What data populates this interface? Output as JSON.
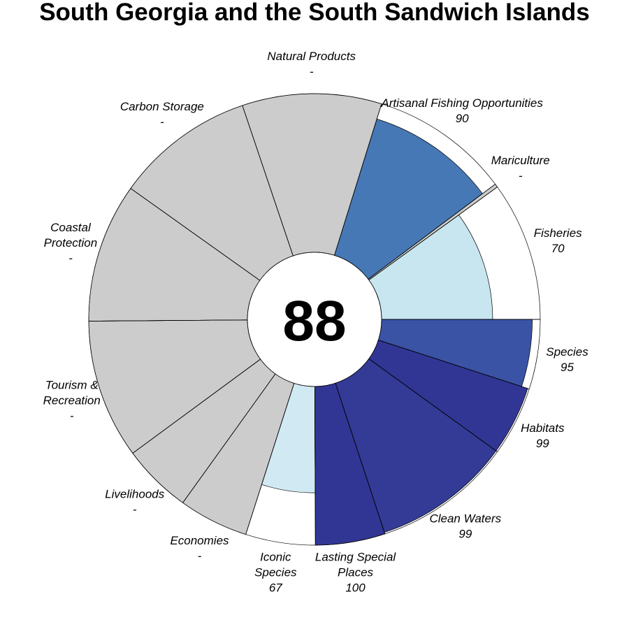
{
  "chart_data": {
    "type": "flower",
    "title": "South Georgia and the South Sandwich Islands",
    "overall_score": "88",
    "max_score": 100,
    "petals": [
      {
        "name": "Fisheries",
        "label_lines": [
          "Fisheries"
        ],
        "display": "70",
        "score": 70,
        "weight": 1,
        "color": "#c7e6f0"
      },
      {
        "name": "Mariculture",
        "label_lines": [
          "Mariculture"
        ],
        "display": "-",
        "score": null,
        "weight": 0,
        "color": "#cccccc"
      },
      {
        "name": "Artisanal Fishing Opportunities",
        "label_lines": [
          "Artisanal Fishing Opportunities"
        ],
        "display": "90",
        "score": 90,
        "weight": 1,
        "color": "#4678b5"
      },
      {
        "name": "Natural Products",
        "label_lines": [
          "Natural Products"
        ],
        "display": "-",
        "score": null,
        "weight": 1,
        "color": "#cccccc"
      },
      {
        "name": "Carbon Storage",
        "label_lines": [
          "Carbon Storage"
        ],
        "display": "-",
        "score": null,
        "weight": 1,
        "color": "#cccccc"
      },
      {
        "name": "Coastal Protection",
        "label_lines": [
          "Coastal",
          "Protection"
        ],
        "display": "-",
        "score": null,
        "weight": 1,
        "color": "#cccccc"
      },
      {
        "name": "Tourism & Recreation",
        "label_lines": [
          "Tourism &",
          "Recreation"
        ],
        "display": "-",
        "score": null,
        "weight": 1,
        "color": "#cccccc"
      },
      {
        "name": "Livelihoods",
        "label_lines": [
          "Livelihoods"
        ],
        "display": "-",
        "score": null,
        "weight": 0.5,
        "color": "#cccccc"
      },
      {
        "name": "Economies",
        "label_lines": [
          "Economies"
        ],
        "display": "-",
        "score": null,
        "weight": 0.5,
        "color": "#cccccc"
      },
      {
        "name": "Iconic Species",
        "label_lines": [
          "Iconic",
          "Species"
        ],
        "display": "67",
        "score": 67,
        "weight": 0.5,
        "color": "#d1e9f2"
      },
      {
        "name": "Lasting Special Places",
        "label_lines": [
          "Lasting Special",
          "Places"
        ],
        "display": "100",
        "score": 100,
        "weight": 0.5,
        "color": "#313695"
      },
      {
        "name": "Clean Waters",
        "label_lines": [
          "Clean Waters"
        ],
        "display": "99",
        "score": 99,
        "weight": 1,
        "color": "#333b96"
      },
      {
        "name": "Habitats",
        "label_lines": [
          "Habitats"
        ],
        "display": "99",
        "score": 99,
        "weight": 0.5,
        "color": "#313695"
      },
      {
        "name": "Species",
        "label_lines": [
          "Species"
        ],
        "display": "95",
        "score": 95,
        "weight": 0.5,
        "color": "#3b53a4"
      }
    ]
  }
}
